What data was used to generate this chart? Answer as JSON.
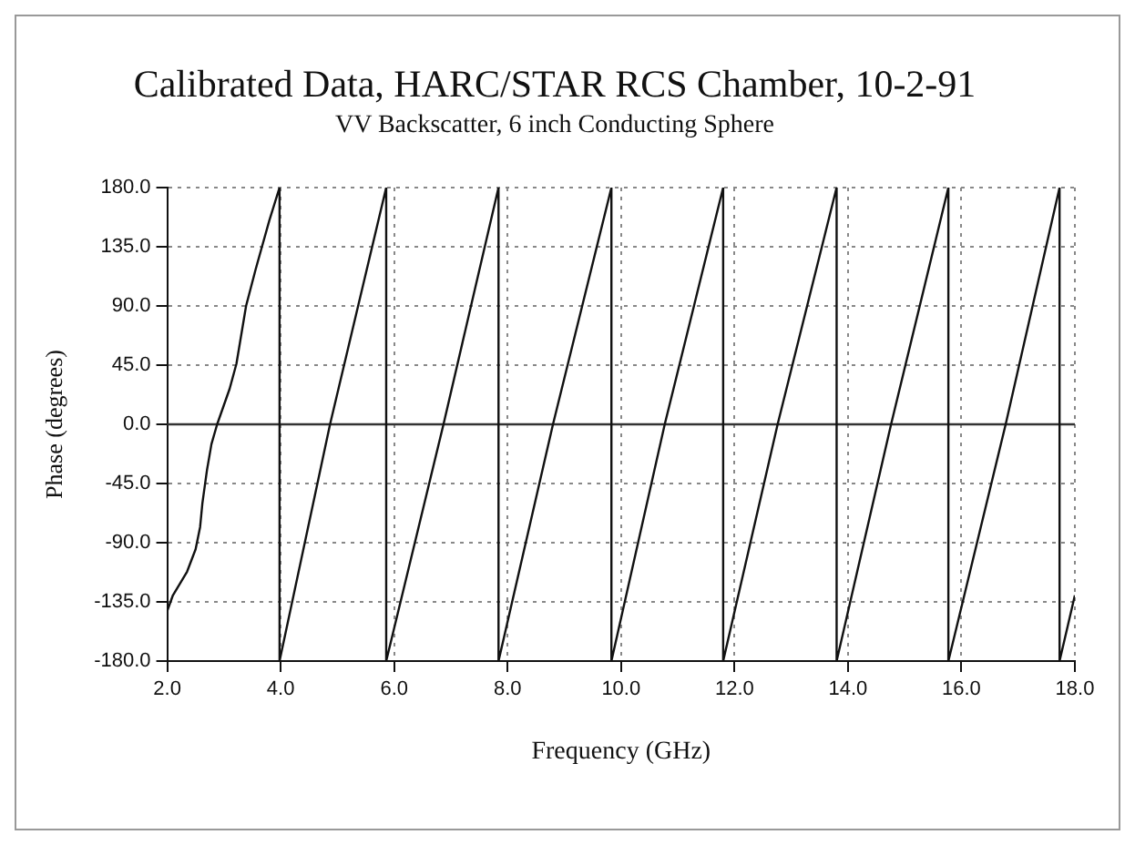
{
  "chart_data": {
    "type": "line",
    "title": "Calibrated Data, HARC/STAR RCS Chamber, 10-2-91",
    "subtitle": "VV Backscatter, 6 inch Conducting Sphere",
    "xlabel": "Frequency (GHz)",
    "ylabel": "Phase (degrees)",
    "x": [
      2.0,
      2.1,
      2.35,
      2.5,
      2.58,
      2.62,
      2.7,
      2.78,
      2.88,
      3.1,
      3.22,
      3.39,
      3.56,
      3.67,
      3.8,
      3.98,
      3.98,
      4.87,
      5.86,
      5.86,
      6.87,
      7.84,
      7.84,
      8.8,
      9.83,
      9.83,
      10.77,
      11.8,
      11.8,
      12.76,
      13.8,
      13.8,
      14.76,
      15.77,
      15.77,
      16.78,
      17.73,
      17.73,
      18.0
    ],
    "series": [
      {
        "color": "#111111",
        "values": [
          -142,
          -130,
          -112,
          -95,
          -78,
          -60,
          -35,
          -15,
          0,
          27,
          46,
          90,
          118,
          135,
          155,
          180,
          -180,
          0,
          180,
          -180,
          0,
          180,
          -180,
          0,
          180,
          -180,
          0,
          180,
          -180,
          0,
          180,
          -180,
          0,
          180,
          -180,
          0,
          180,
          -180,
          -130
        ]
      }
    ],
    "xlim": [
      2,
      18
    ],
    "xticks": [
      {
        "value": 2,
        "label": "2.0"
      },
      {
        "value": 4,
        "label": "4.0"
      },
      {
        "value": 6,
        "label": "6.0"
      },
      {
        "value": 8,
        "label": "8.0"
      },
      {
        "value": 10,
        "label": "10.0"
      },
      {
        "value": 12,
        "label": "12.0"
      },
      {
        "value": 14,
        "label": "14.0"
      },
      {
        "value": 16,
        "label": "16.0"
      },
      {
        "value": 18,
        "label": "18.0"
      }
    ],
    "ylim": [
      -180,
      180
    ],
    "yticks": [
      {
        "value": -180,
        "label": "-180.0"
      },
      {
        "value": -135,
        "label": "-135.0"
      },
      {
        "value": -90,
        "label": "-90.0"
      },
      {
        "value": -45,
        "label": "-45.0"
      },
      {
        "value": 0,
        "label": "0.0"
      },
      {
        "value": 45,
        "label": "45.0"
      },
      {
        "value": 90,
        "label": "90.0"
      },
      {
        "value": 135,
        "label": "135.0"
      },
      {
        "value": 180,
        "label": "180.0"
      }
    ],
    "ref_lines": [
      {
        "axis": "y",
        "value": 0,
        "color": "#333333",
        "line_style": "solid"
      }
    ],
    "grid": true,
    "marker": "none",
    "line_style": "solid"
  }
}
